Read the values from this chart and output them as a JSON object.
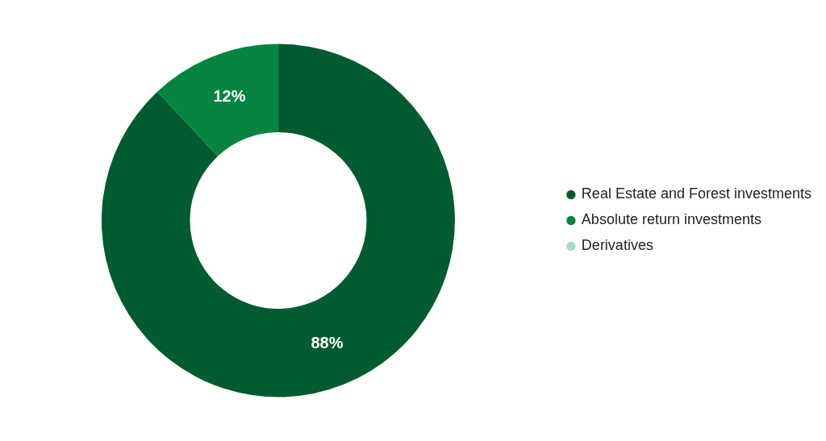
{
  "chart_data": {
    "type": "donut",
    "categories": [
      "Real Estate and Forest investments",
      "Absolute return investments",
      "Derivatives"
    ],
    "values": [
      88,
      12,
      0
    ],
    "colors": [
      "#005c2e",
      "#07843f",
      "#a8dcc0"
    ],
    "value_labels": [
      "88%",
      "12%",
      null
    ],
    "legend": "right"
  }
}
